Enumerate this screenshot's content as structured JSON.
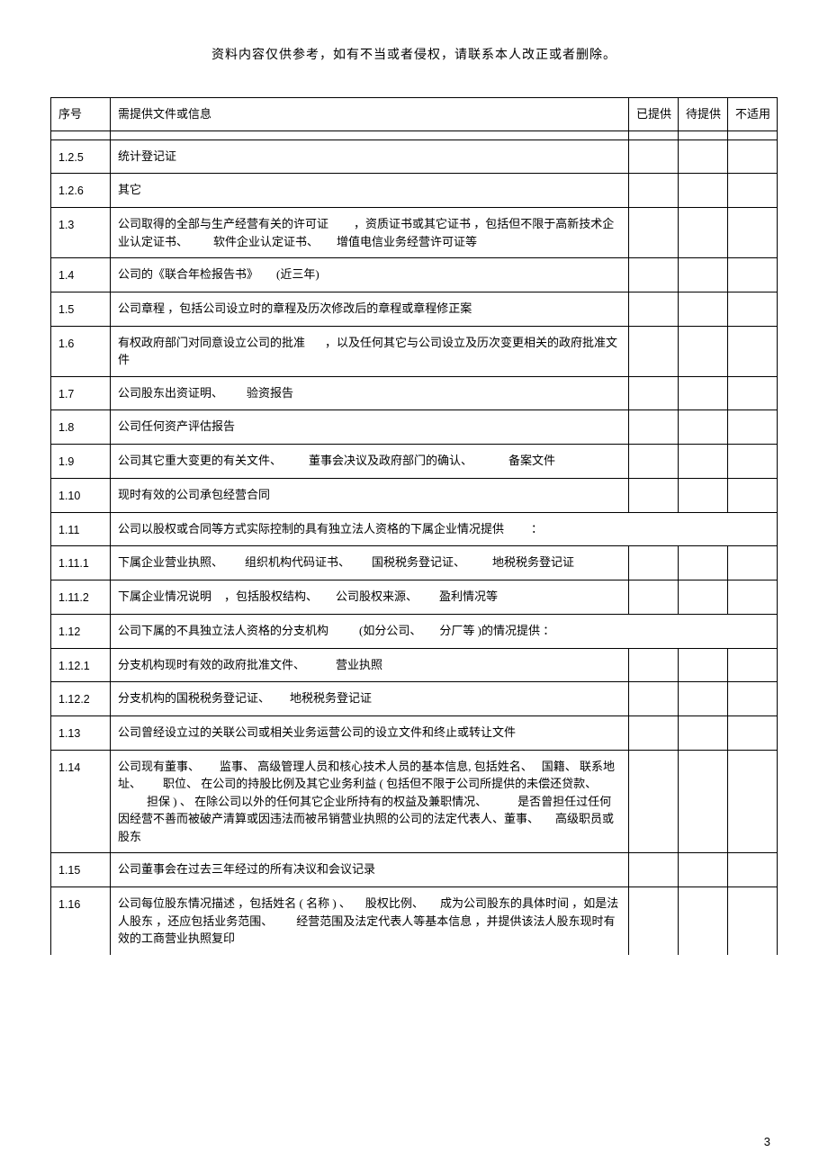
{
  "header_note": "资料内容仅供参考，如有不当或者侵权，请联系本人改正或者删除。",
  "columns": {
    "num": "序号",
    "desc": "需提供文件或信息",
    "provided": "已提供",
    "pending": "待提供",
    "na": "不适用"
  },
  "rows": [
    {
      "num": "1.2.5",
      "segs": [
        "统计登记证"
      ]
    },
    {
      "num": "1.2.6",
      "segs": [
        "其它"
      ]
    },
    {
      "num": "1.3",
      "segs": [
        "公司取得的全部与生产经营有关的许可证",
        "，资质证书或其它证书 ，包括但不限于高新技术企业认定证书、",
        "软件企业认定证书、",
        "增值电信业务经营许可证等"
      ],
      "gaps": [
        28,
        28,
        20
      ]
    },
    {
      "num": "1.4",
      "segs": [
        "公司的《联合年检报告书》",
        "(近三年)"
      ],
      "gaps": [
        20
      ]
    },
    {
      "num": "1.5",
      "segs": [
        "公司章程 ，包括公司设立时的章程及历次修改后的章程或章程修正案"
      ]
    },
    {
      "num": "1.6",
      "segs": [
        "有权政府部门对同意设立公司的批准",
        "，以及任何其它与公司设立及历次变更相关的政府批准文件"
      ],
      "gaps": [
        22
      ]
    },
    {
      "num": "1.7",
      "segs": [
        "公司股东出资证明、",
        "验资报告"
      ],
      "gaps": [
        26
      ]
    },
    {
      "num": "1.8",
      "segs": [
        "公司任何资产评估报告"
      ]
    },
    {
      "num": "1.9",
      "segs": [
        "公司其它重大变更的有关文件、",
        "董事会决议及政府部门的确认、",
        "备案文件"
      ],
      "gaps": [
        30,
        40
      ]
    },
    {
      "num": "1.10",
      "segs": [
        "现时有效的公司承包经营合同"
      ]
    },
    {
      "num": "1.11",
      "segs": [
        "公司以股权或合同等方式实际控制的具有独立法人资格的下属企业情况提供",
        "："
      ],
      "gaps": [
        30
      ],
      "section": true
    },
    {
      "num": "1.11.1",
      "segs": [
        "下属企业营业执照、",
        "组织机构代码证书、",
        "国税税务登记证、",
        "地税税务登记证"
      ],
      "gaps": [
        24,
        24,
        30
      ]
    },
    {
      "num": "1.11.2",
      "segs": [
        "下属企业情况说明",
        "，包括股权结构、",
        "公司股权来源、",
        "盈利情况等"
      ],
      "gaps": [
        14,
        20,
        24
      ]
    },
    {
      "num": "1.12",
      "segs": [
        "公司下属的不具独立法人资格的分支机构",
        "(如分公司、",
        "分厂等 )的情况提供 ："
      ],
      "gaps": [
        34,
        20
      ],
      "section": true
    },
    {
      "num": "1.12.1",
      "segs": [
        "分支机构现时有效的政府批准文件、",
        "营业执照"
      ],
      "gaps": [
        34
      ]
    },
    {
      "num": "1.12.2",
      "segs": [
        "分支机构的国税税务登记证、",
        "地税税务登记证"
      ],
      "gaps": [
        22
      ]
    },
    {
      "num": "1.13",
      "segs": [
        "公司曾经设立过的关联公司或相关业务运营公司的设立文件和终止或转让文件"
      ]
    },
    {
      "num": "1.14",
      "segs": [
        "公司现有董事、",
        "监事、 高级管理人员和核心技术人员的基本信息,  包括姓名、",
        "国籍、 联系地址、",
        "职位、 在公司的持股比例及其它业务利益 ( 包括但不限于公司所提供的未偿还贷款、",
        "担保 ) 、 在除公司以外的任何其它企业所持有的权益及兼职情况、",
        "是否曾担任过任何因经营不善而被破产清算或因违法而被吊销营业执照的公司的法定代表人、",
        "董事、",
        "高级职员或股东"
      ],
      "gaps": [
        22,
        10,
        24,
        32,
        34,
        0,
        18,
        18
      ]
    },
    {
      "num": "1.15",
      "segs": [
        "公司董事会在过去三年经过的所有决议和会议记录"
      ]
    },
    {
      "num": "1.16",
      "segs": [
        "公司每位股东情况描述 ，包括姓名 ( 名称 ) 、",
        "股权比例、",
        "成为公司股东的具体时间 ，如是法人股东 ，还应包括业务范围、",
        "经营范围及法定代表人等基本信息 ，并提供该法人股东现时有效的工商营业执照复印"
      ],
      "gaps": [
        16,
        18,
        26
      ],
      "noBottom": true
    }
  ],
  "page_number": "3"
}
